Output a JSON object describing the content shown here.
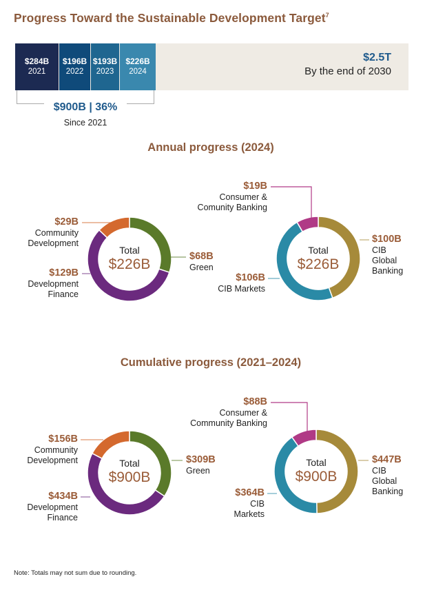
{
  "header": {
    "title": "Progress Toward the Sustainable Development Target",
    "footnote_marker": "7"
  },
  "progress_bar": {
    "segments": [
      {
        "value_label": "$284B",
        "year": "2021",
        "value": 284,
        "color": "#1c2a52"
      },
      {
        "value_label": "$196B",
        "year": "2022",
        "value": 196,
        "color": "#0f4a7a"
      },
      {
        "value_label": "$193B",
        "year": "2023",
        "value": 193,
        "color": "#1f6690"
      },
      {
        "value_label": "$226B",
        "year": "2024",
        "value": 226,
        "color": "#3a88ae"
      }
    ],
    "target_label": "$2.5T",
    "target_value": 2500,
    "target_sub": "By the end of 2030",
    "remaining_color": "#efebe4",
    "summary_label": "$900B | 36%",
    "summary_sub": "Since 2021"
  },
  "sections": {
    "annual_title": "Annual progress (2024)",
    "cumulative_title": "Cumulative progress (2021–2024)"
  },
  "chart_data": [
    {
      "type": "pie",
      "title": "Annual progress (2024) - by category",
      "center_label": "Total",
      "total_label": "$226B",
      "slices": [
        {
          "name": "Green",
          "value": 68,
          "label": "$68B",
          "color": "#5a7a2a"
        },
        {
          "name": "Development Finance",
          "value": 129,
          "label": "$129B",
          "color": "#6b2a7e"
        },
        {
          "name": "Community Development",
          "value": 29,
          "label": "$29B",
          "color": "#d4692e"
        }
      ]
    },
    {
      "type": "pie",
      "title": "Annual progress (2024) - by business",
      "center_label": "Total",
      "total_label": "$226B",
      "slices": [
        {
          "name": "CIB Global Banking",
          "value": 100,
          "label": "$100B",
          "color": "#a68a3a"
        },
        {
          "name": "CIB Markets",
          "value": 106,
          "label": "$106B",
          "color": "#2a8aa6"
        },
        {
          "name": "Consumer & Comunity Banking",
          "value": 19,
          "label": "$19B",
          "color": "#b03a86"
        }
      ]
    },
    {
      "type": "pie",
      "title": "Cumulative progress (2021–2024) - by category",
      "center_label": "Total",
      "total_label": "$900B",
      "slices": [
        {
          "name": "Green",
          "value": 309,
          "label": "$309B",
          "color": "#5a7a2a"
        },
        {
          "name": "Development Finance",
          "value": 434,
          "label": "$434B",
          "color": "#6b2a7e"
        },
        {
          "name": "Community Development",
          "value": 156,
          "label": "$156B",
          "color": "#d4692e"
        }
      ]
    },
    {
      "type": "pie",
      "title": "Cumulative progress (2021–2024) - by business",
      "center_label": "Total",
      "total_label": "$900B",
      "slices": [
        {
          "name": "CIB Global Banking",
          "value": 447,
          "label": "$447B",
          "color": "#a68a3a"
        },
        {
          "name": "CIB Markets",
          "value": 364,
          "label": "$364B",
          "color": "#2a8aa6"
        },
        {
          "name": "Consumer & Community Banking",
          "value": 88,
          "label": "$88B",
          "color": "#b03a86"
        }
      ]
    }
  ],
  "labels": {
    "tl": {
      "green": {
        "value": "$68B",
        "text": [
          "Green"
        ]
      },
      "devfin": {
        "value": "$129B",
        "text": [
          "Development",
          "Finance"
        ]
      },
      "comdev": {
        "value": "$29B",
        "text": [
          "Community",
          "Development"
        ]
      }
    },
    "tr": {
      "cibgb": {
        "value": "$100B",
        "text": [
          "CIB",
          "Global",
          "Banking"
        ]
      },
      "cibm": {
        "value": "$106B",
        "text": [
          "CIB Markets"
        ]
      },
      "ccb": {
        "value": "$19B",
        "text": [
          "Consumer &",
          "Comunity Banking"
        ]
      }
    },
    "bl": {
      "green": {
        "value": "$309B",
        "text": [
          "Green"
        ]
      },
      "devfin": {
        "value": "$434B",
        "text": [
          "Development",
          "Finance"
        ]
      },
      "comdev": {
        "value": "$156B",
        "text": [
          "Community",
          "Development"
        ]
      }
    },
    "br": {
      "cibgb": {
        "value": "$447B",
        "text": [
          "CIB",
          "Global",
          "Banking"
        ]
      },
      "cibm": {
        "value": "$364B",
        "text": [
          "CIB",
          "Markets"
        ]
      },
      "ccb": {
        "value": "$88B",
        "text": [
          "Consumer &",
          "Community Banking"
        ]
      }
    }
  },
  "footer": {
    "note": "Note: Totals may not sum due to rounding."
  }
}
